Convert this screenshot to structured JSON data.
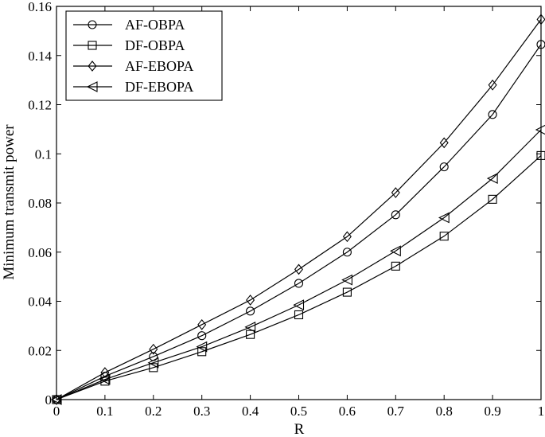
{
  "chart_data": {
    "type": "line",
    "title": "",
    "xlabel": "R",
    "ylabel": "Minimum transmit power",
    "xlim": [
      0,
      1
    ],
    "ylim": [
      0,
      0.16
    ],
    "x_ticks": [
      0,
      0.1,
      0.2,
      0.3,
      0.4,
      0.5,
      0.6,
      0.7,
      0.8,
      0.9,
      1
    ],
    "x_tick_labels": [
      "0",
      "0.1",
      "0.2",
      "0.3",
      "0.4",
      "0.5",
      "0.6",
      "0.7",
      "0.8",
      "0.9",
      "1"
    ],
    "y_ticks": [
      0,
      0.02,
      0.04,
      0.06,
      0.08,
      0.1,
      0.12,
      0.14,
      0.16
    ],
    "y_tick_labels": [
      "0",
      "0.02",
      "0.04",
      "0.06",
      "0.08",
      "0.1",
      "0.12",
      "0.14",
      "0.16"
    ],
    "grid": false,
    "legend_position": "top-left",
    "line_color": "#000000",
    "x": [
      0,
      0.1,
      0.2,
      0.3,
      0.4,
      0.5,
      0.6,
      0.7,
      0.8,
      0.9,
      1.0
    ],
    "series": [
      {
        "name": "AF-OBPA",
        "marker": "circle",
        "values": [
          0,
          0.0095,
          0.0175,
          0.026,
          0.036,
          0.0473,
          0.06,
          0.0752,
          0.0947,
          0.116,
          0.1445
        ]
      },
      {
        "name": "DF-OBPA",
        "marker": "square",
        "values": [
          0,
          0.0075,
          0.013,
          0.0195,
          0.0265,
          0.0345,
          0.0437,
          0.0543,
          0.0665,
          0.0815,
          0.0993
        ]
      },
      {
        "name": "AF-EBOPA",
        "marker": "diamond",
        "values": [
          0,
          0.011,
          0.0205,
          0.0305,
          0.0405,
          0.053,
          0.0663,
          0.0842,
          0.1045,
          0.128,
          0.1547
        ]
      },
      {
        "name": "DF-EBOPA",
        "marker": "triangle-left",
        "values": [
          0,
          0.0082,
          0.015,
          0.0215,
          0.0295,
          0.0385,
          0.0487,
          0.0605,
          0.074,
          0.09,
          0.1098
        ]
      }
    ]
  }
}
